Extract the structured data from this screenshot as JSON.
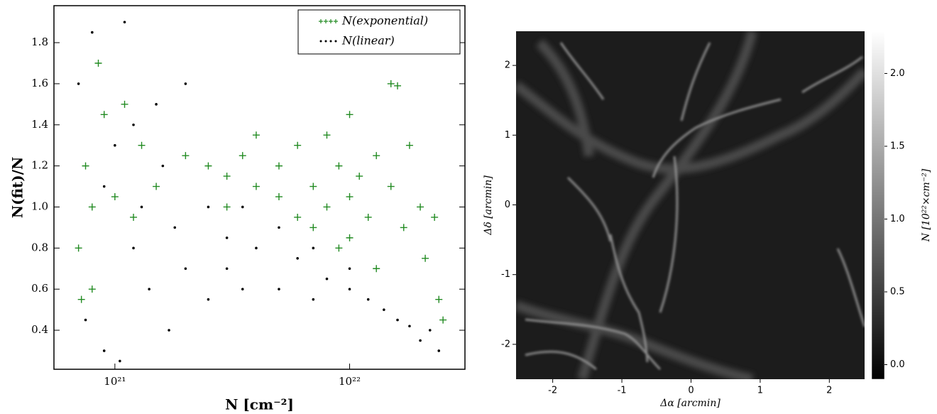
{
  "chart_data": [
    {
      "type": "scatter",
      "xlabel": "N [cm⁻²]",
      "ylabel": "N(fit)/N",
      "xscale": "log",
      "legend": "upper right",
      "xlim": [
        5.5e+20,
        3.1e+22
      ],
      "ylim": [
        0.21,
        1.98
      ],
      "xticks": [
        {
          "value": 1e+21,
          "label": "10²¹"
        },
        {
          "value": 1e+22,
          "label": "10²²"
        }
      ],
      "yticks": [
        0.4,
        0.6,
        0.8,
        {
          "value": 1,
          "label": "1.0"
        },
        1.2,
        1.4,
        1.6,
        1.8
      ],
      "series": [
        {
          "name": "N(exponential)",
          "color": "#228b22",
          "marker": "plus",
          "x": [
            7e+20,
            7.5e+20,
            7.2e+20,
            8e+20,
            8.5e+20,
            9e+20,
            8e+20,
            1.1e+21,
            1.3e+21,
            1.5e+21,
            2e+21,
            2.5e+21,
            3e+21,
            3.5e+21,
            4e+21,
            5e+21,
            5e+21,
            6e+21,
            6e+21,
            7e+21,
            7e+21,
            8e+21,
            8e+21,
            9e+21,
            1e+22,
            1e+22,
            1e+22,
            1.1e+22,
            1.2e+22,
            1.3e+22,
            1.3e+22,
            1.5e+22,
            1.5e+22,
            1.7e+22,
            1.8e+22,
            2e+22,
            2.1e+22,
            2.3e+22,
            2.5e+22,
            2.4e+22,
            1.6e+22,
            9e+21,
            4e+21,
            3e+21,
            1.2e+21,
            1e+21
          ],
          "values": [
            0.8,
            1.2,
            0.55,
            1.0,
            1.7,
            1.45,
            0.6,
            1.5,
            1.3,
            1.1,
            1.25,
            1.2,
            1.15,
            1.25,
            1.1,
            1.05,
            1.2,
            1.3,
            0.95,
            1.1,
            0.9,
            1.35,
            1.0,
            1.2,
            1.45,
            1.05,
            0.85,
            1.15,
            0.95,
            1.25,
            0.7,
            1.6,
            1.1,
            0.9,
            1.3,
            1.0,
            0.75,
            0.95,
            0.45,
            0.55,
            1.59,
            0.8,
            1.35,
            1.0,
            0.95,
            1.05
          ]
        },
        {
          "name": "N(linear)",
          "color": "#000000",
          "marker": "dot",
          "x": [
            7e+20,
            7.5e+20,
            8e+20,
            9e+20,
            1e+21,
            1.05e+21,
            1.1e+21,
            1.2e+21,
            1.2e+21,
            1.3e+21,
            1.4e+21,
            1.6e+21,
            1.8e+21,
            2e+21,
            2e+21,
            2.5e+21,
            2.5e+21,
            3e+21,
            3.5e+21,
            3.5e+21,
            4e+21,
            5e+21,
            5e+21,
            6e+21,
            7e+21,
            7e+21,
            8e+21,
            1e+22,
            1e+22,
            1.2e+22,
            1.4e+22,
            1.6e+22,
            1.8e+22,
            2e+22,
            2.4e+22,
            2.2e+22,
            1.5e+21,
            9e+20,
            1.7e+21,
            3e+21
          ],
          "values": [
            1.6,
            0.45,
            1.85,
            0.3,
            1.3,
            0.25,
            1.9,
            1.4,
            0.8,
            1.0,
            0.6,
            1.2,
            0.9,
            1.6,
            0.7,
            1.0,
            0.55,
            0.85,
            1.0,
            0.6,
            0.8,
            0.9,
            0.6,
            0.75,
            0.8,
            0.55,
            0.65,
            0.6,
            0.7,
            0.55,
            0.5,
            0.45,
            0.42,
            0.35,
            0.3,
            0.4,
            1.5,
            1.1,
            0.4,
            0.7
          ]
        }
      ]
    },
    {
      "type": "image",
      "xlabel": "Δα  [arcmin]",
      "ylabel": "Δδ  [arcmin]",
      "xlim": [
        -2.53,
        2.51
      ],
      "ylim": [
        -2.5,
        2.49
      ],
      "xticks": [
        -2,
        -1,
        0,
        1,
        2
      ],
      "yticks": [
        -2,
        -1,
        0,
        1,
        2
      ],
      "colorbar": {
        "label": "N  [10²²×cm⁻²]",
        "lim": [
          -0.1,
          2.29
        ],
        "ticks": [
          {
            "value": 0,
            "label": "0.0"
          },
          0.5,
          {
            "value": 1,
            "label": "1.0"
          },
          1.5,
          {
            "value": 2,
            "label": "2.0"
          }
        ]
      }
    }
  ]
}
